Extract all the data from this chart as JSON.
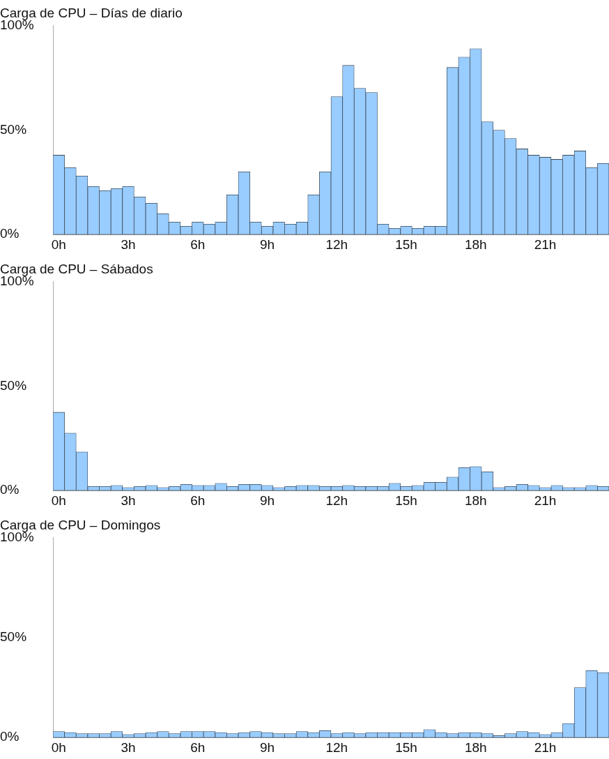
{
  "chart_data": [
    {
      "type": "bar",
      "title": "Carga de CPU – Días de diario",
      "categories": [
        "0h",
        null,
        null,
        null,
        null,
        null,
        "3h",
        null,
        null,
        null,
        null,
        null,
        "6h",
        null,
        null,
        null,
        null,
        null,
        "9h",
        null,
        null,
        null,
        null,
        null,
        "12h",
        null,
        null,
        null,
        null,
        null,
        "15h",
        null,
        null,
        null,
        null,
        null,
        "18h",
        null,
        null,
        null,
        null,
        null,
        "21h",
        null,
        null,
        null,
        null,
        null
      ],
      "values": [
        38,
        32,
        28,
        23,
        21,
        22,
        23,
        18,
        15,
        10,
        6,
        4,
        6,
        5,
        6,
        19,
        30,
        6,
        4,
        6,
        5,
        6,
        19,
        30,
        66,
        81,
        70,
        68,
        5,
        3,
        4,
        3,
        4,
        4,
        80,
        85,
        89,
        54,
        50,
        46,
        41,
        38,
        37,
        36,
        38,
        40,
        32,
        34
      ],
      "color": "#99ccff",
      "ylim": [
        0,
        100
      ],
      "yticks": [
        {
          "value": 0,
          "label": "0%"
        },
        {
          "value": 50,
          "label": "50%"
        },
        {
          "value": 100,
          "label": "100%"
        }
      ],
      "grid": false,
      "legend": false
    },
    {
      "type": "bar",
      "title": "Carga de CPU – Sábados",
      "categories": [
        "0h",
        null,
        null,
        null,
        null,
        null,
        "3h",
        null,
        null,
        null,
        null,
        null,
        "6h",
        null,
        null,
        null,
        null,
        null,
        "9h",
        null,
        null,
        null,
        null,
        null,
        "12h",
        null,
        null,
        null,
        null,
        null,
        "15h",
        null,
        null,
        null,
        null,
        null,
        "18h",
        null,
        null,
        null,
        null,
        null,
        "21h",
        null,
        null,
        null,
        null,
        null
      ],
      "values": [
        37.5,
        27.5,
        18.5,
        2,
        2,
        2.5,
        1.5,
        2,
        2.5,
        1.5,
        2,
        3,
        2.5,
        2.5,
        3.5,
        2,
        3,
        3,
        2.5,
        1.5,
        2,
        2.5,
        2.5,
        2,
        2,
        2.5,
        2,
        2,
        2,
        3.5,
        2,
        2.5,
        4,
        4,
        6.5,
        11,
        11.5,
        9,
        1.5,
        2,
        3,
        2.5,
        1.5,
        2.5,
        1.5,
        1.5,
        2.5,
        2
      ],
      "color": "#99ccff",
      "ylim": [
        0,
        100
      ],
      "yticks": [
        {
          "value": 0,
          "label": "0%"
        },
        {
          "value": 50,
          "label": "50%"
        },
        {
          "value": 100,
          "label": "100%"
        }
      ],
      "grid": false,
      "legend": false
    },
    {
      "type": "bar",
      "title": "Carga de CPU – Domingos",
      "categories": [
        "0h",
        null,
        null,
        null,
        null,
        null,
        "3h",
        null,
        null,
        null,
        null,
        null,
        "6h",
        null,
        null,
        null,
        null,
        null,
        "9h",
        null,
        null,
        null,
        null,
        null,
        "12h",
        null,
        null,
        null,
        null,
        null,
        "15h",
        null,
        null,
        null,
        null,
        null,
        "18h",
        null,
        null,
        null,
        null,
        null,
        "21h",
        null,
        null,
        null,
        null,
        null
      ],
      "values": [
        3,
        2.5,
        2,
        2,
        2,
        3,
        1.5,
        2,
        2.5,
        3,
        2,
        3,
        3,
        3,
        2.5,
        2,
        2.5,
        3,
        2.5,
        2,
        2,
        3,
        2.5,
        3.5,
        2,
        2.5,
        2,
        2.5,
        2.5,
        2.5,
        2.5,
        2.5,
        4,
        2.5,
        2,
        2.5,
        2.5,
        2,
        1,
        2,
        3,
        2.5,
        1.5,
        2.5,
        7,
        25,
        33.5,
        32.5
      ],
      "color": "#99ccff",
      "ylim": [
        0,
        100
      ],
      "yticks": [
        {
          "value": 0,
          "label": "0%"
        },
        {
          "value": 50,
          "label": "50%"
        },
        {
          "value": 100,
          "label": "100%"
        }
      ],
      "grid": false,
      "legend": false
    }
  ]
}
